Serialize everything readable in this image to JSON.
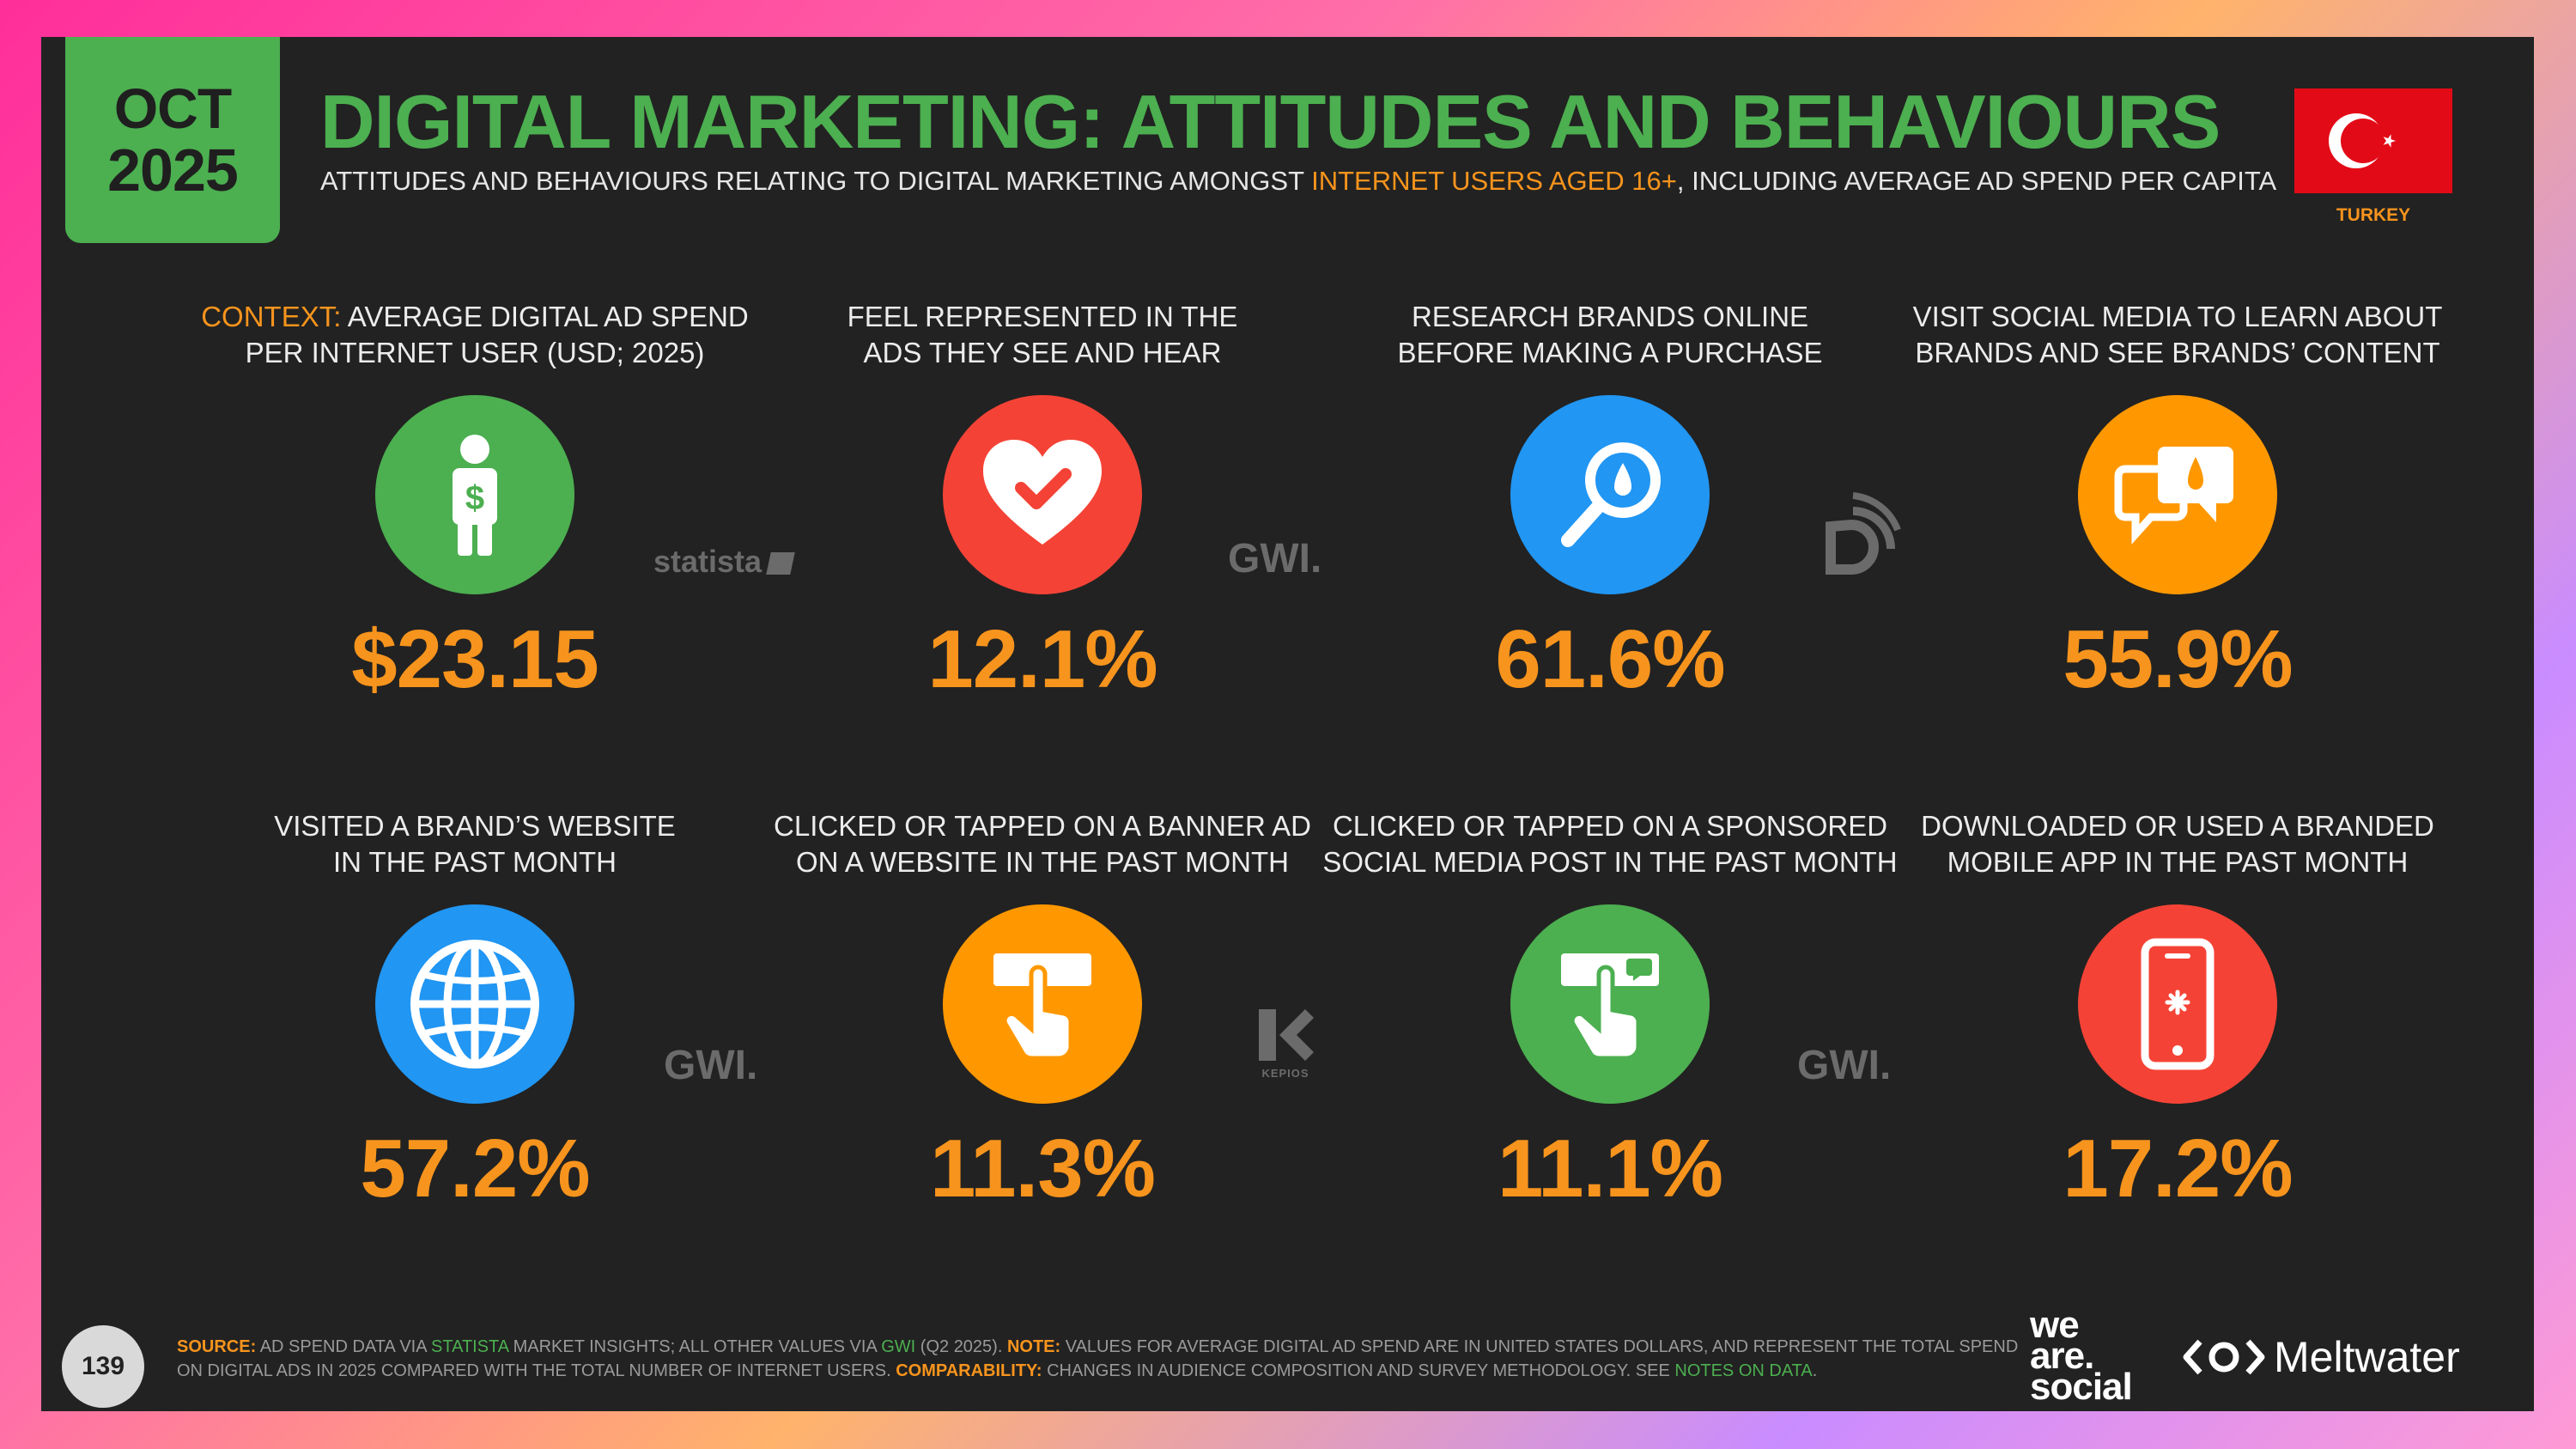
{
  "header": {
    "date_month": "OCT",
    "date_year": "2025",
    "title": "DIGITAL MARKETING: ATTITUDES AND BEHAVIOURS",
    "subtitle_pre": "ATTITUDES AND BEHAVIOURS RELATING TO DIGITAL MARKETING AMONGST ",
    "subtitle_highlight": "INTERNET USERS AGED 16+",
    "subtitle_post": ", INCLUDING AVERAGE AD SPEND PER CAPITA",
    "country": "TURKEY"
  },
  "stats": [
    {
      "label_prefix": "CONTEXT:",
      "label_line1": " AVERAGE DIGITAL AD SPEND",
      "label_line2": "PER INTERNET USER (USD; 2025)",
      "value": "$23.15",
      "color": "#4caf50",
      "icon": "person-dollar-icon"
    },
    {
      "label_prefix": "",
      "label_line1": "FEEL REPRESENTED IN THE",
      "label_line2": "ADS THEY SEE AND HEAR",
      "value": "12.1%",
      "color": "#f44336",
      "icon": "heart-check-icon"
    },
    {
      "label_prefix": "",
      "label_line1": "RESEARCH BRANDS ONLINE",
      "label_line2": "BEFORE MAKING A PURCHASE",
      "value": "61.6%",
      "color": "#2196f3",
      "icon": "magnifier-icon"
    },
    {
      "label_prefix": "",
      "label_line1": "VISIT SOCIAL MEDIA TO LEARN ABOUT",
      "label_line2": "BRANDS AND SEE BRANDS’ CONTENT",
      "value": "55.9%",
      "color": "#ff9800",
      "icon": "chat-bubbles-icon"
    },
    {
      "label_prefix": "",
      "label_line1": "VISITED A BRAND’S WEBSITE",
      "label_line2": "IN THE PAST MONTH",
      "value": "57.2%",
      "color": "#2196f3",
      "icon": "globe-icon"
    },
    {
      "label_prefix": "",
      "label_line1": "CLICKED OR TAPPED ON A BANNER AD",
      "label_line2": "ON A WEBSITE IN THE PAST MONTH",
      "value": "11.3%",
      "color": "#ff9800",
      "icon": "tap-banner-icon"
    },
    {
      "label_prefix": "",
      "label_line1": "CLICKED OR TAPPED ON A SPONSORED",
      "label_line2": "SOCIAL MEDIA POST IN THE PAST MONTH",
      "value": "11.1%",
      "color": "#4caf50",
      "icon": "tap-social-icon"
    },
    {
      "label_prefix": "",
      "label_line1": "DOWNLOADED OR USED A BRANDED",
      "label_line2": "MOBILE APP IN THE PAST MONTH",
      "value": "17.2%",
      "color": "#f44336",
      "icon": "smartphone-icon"
    }
  ],
  "sources": {
    "statista": "statista",
    "gwi": "GWI.",
    "kepios": "KEPIOS"
  },
  "footer": {
    "page_number": "139",
    "source_label": "SOURCE:",
    "source_text_1": " AD SPEND DATA VIA ",
    "source_statista": "STATISTA",
    "source_text_2": " MARKET INSIGHTS; ALL OTHER VALUES VIA ",
    "source_gwi": "GWI",
    "source_text_3": " (Q2 2025). ",
    "note_label": "NOTE:",
    "note_text": " VALUES FOR AVERAGE DIGITAL AD SPEND ARE IN UNITED STATES DOLLARS, AND REPRESENT THE TOTAL SPEND ON DIGITAL ADS IN 2025 COMPARED WITH THE TOTAL NUMBER OF INTERNET USERS. ",
    "comp_label": "COMPARABILITY:",
    "comp_text": " CHANGES IN AUDIENCE COMPOSITION AND SURVEY METHODOLOGY. SEE ",
    "comp_link": "NOTES ON DATA",
    "comp_end": ".",
    "brand_1_l1": "we",
    "brand_1_l2": "are.",
    "brand_1_l3": "social",
    "brand_2": "Meltwater"
  }
}
